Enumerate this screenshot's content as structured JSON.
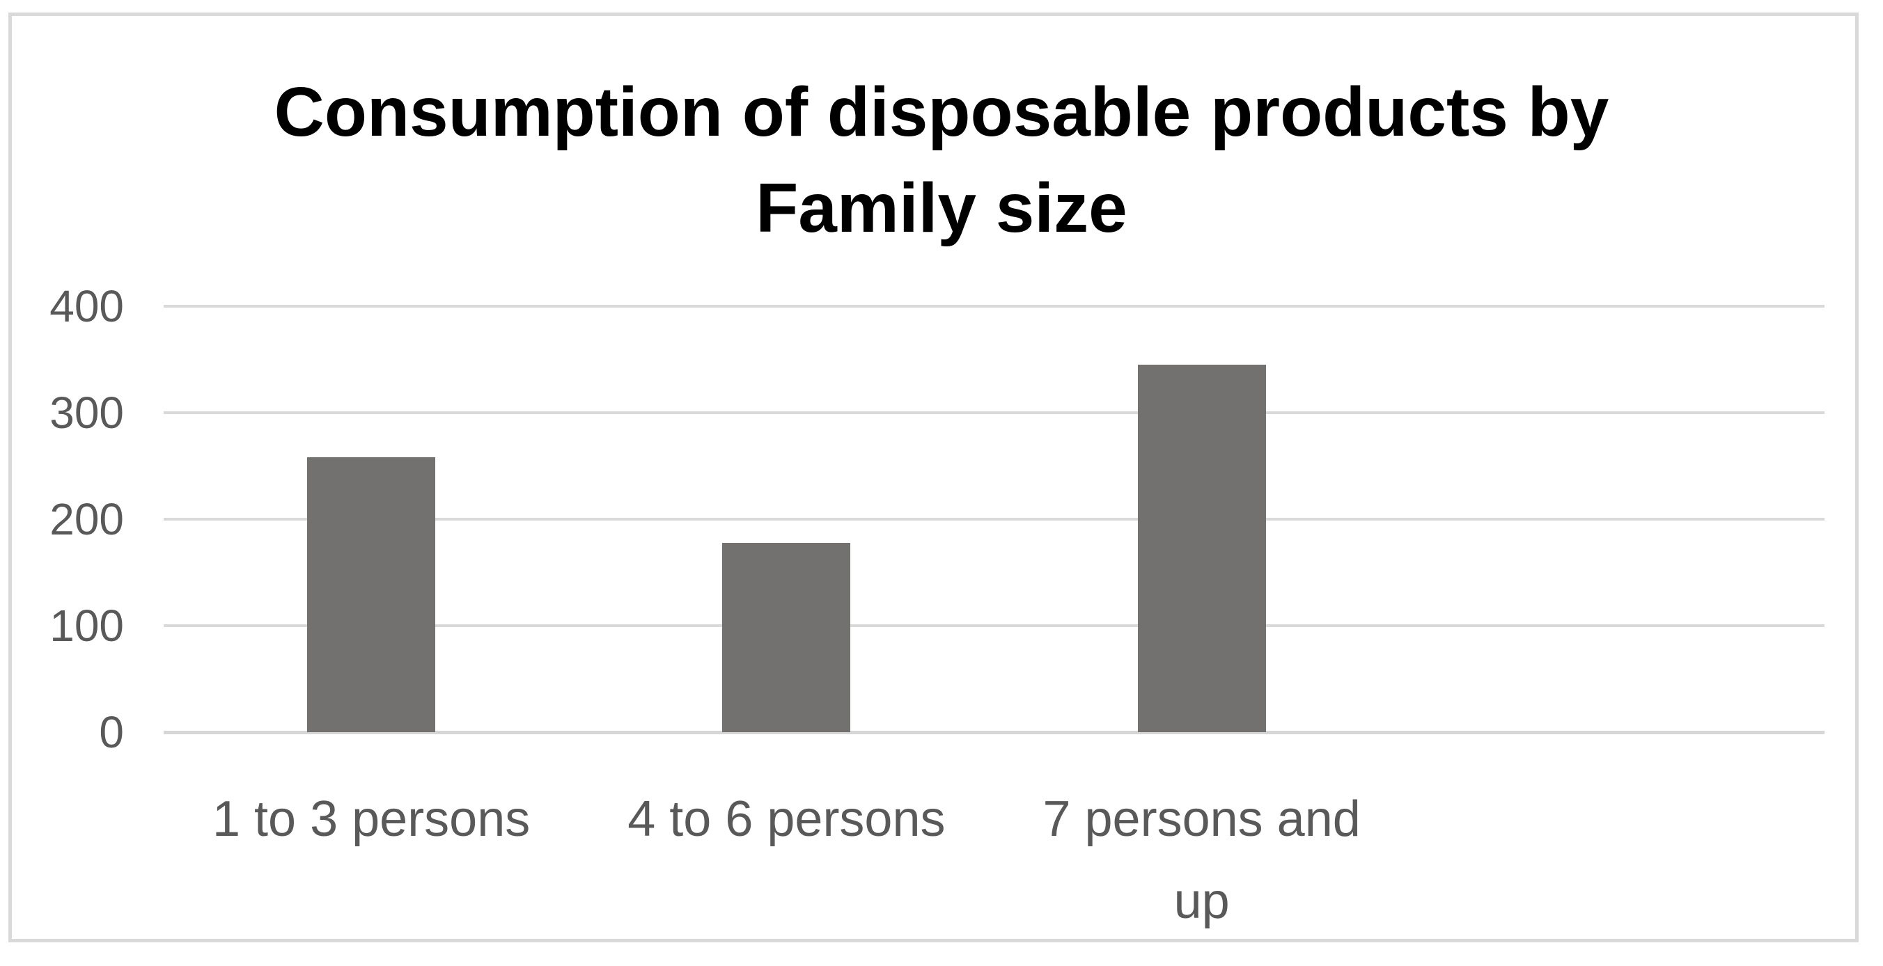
{
  "chart": {
    "title_lines": [
      "Consumption of disposable products by",
      "Family size"
    ]
  },
  "chart_data": {
    "type": "bar",
    "title": "Consumption of disposable products by Family size",
    "categories": [
      "1 to 3 persons",
      "4 to 6 persons",
      "7 persons and up"
    ],
    "values": [
      258,
      178,
      345
    ],
    "xlabel": "",
    "ylabel": "",
    "ylim": [
      0,
      400
    ],
    "yticks": [
      0,
      100,
      200,
      300,
      400
    ],
    "grid": true,
    "legend": false,
    "layout": {
      "category_slots": 4,
      "bar_color": "#737070",
      "gridline_color": "#d9d9d9",
      "frame_border_color": "#d9d9d9",
      "axis_label_color": "#595959",
      "title_color": "#000000",
      "background": "#ffffff"
    }
  }
}
